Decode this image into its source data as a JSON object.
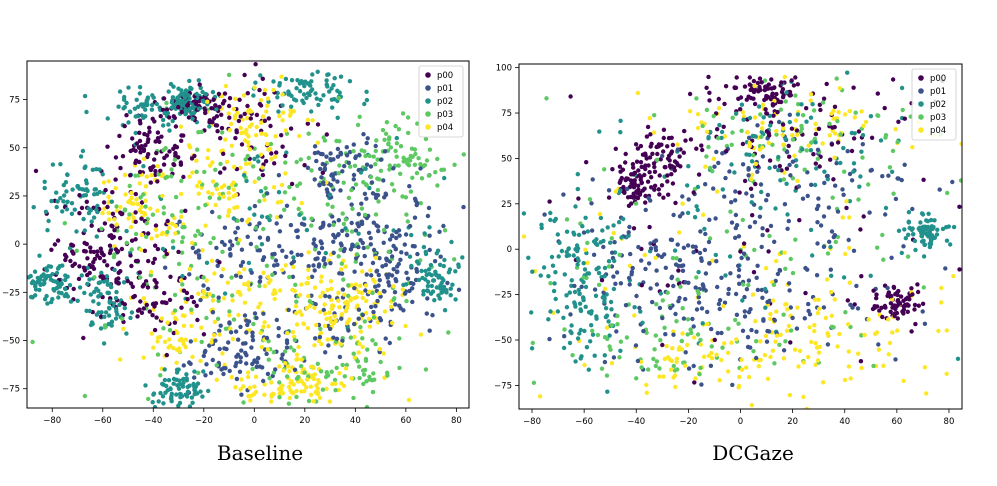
{
  "legend_colors": {
    "p00": "#440154",
    "p01": "#3b528b",
    "p02": "#21918c",
    "p03": "#5ec962",
    "p04": "#fde725"
  },
  "chart_data": [
    {
      "type": "scatter",
      "title": "Baseline",
      "xlabel": "",
      "ylabel": "",
      "xlim": [
        -90,
        85
      ],
      "ylim": [
        -85,
        95
      ],
      "xticks": [
        -80,
        -60,
        -40,
        -20,
        0,
        20,
        40,
        60,
        80
      ],
      "yticks": [
        -75,
        -50,
        -25,
        0,
        25,
        50,
        75
      ],
      "grid": false,
      "legend_position": "top-right",
      "series": [
        {
          "name": "p00",
          "clusters": [
            [
              -40,
              50,
              8,
              8
            ],
            [
              -55,
              10,
              10,
              20
            ],
            [
              -5,
              55,
              15,
              15
            ],
            [
              -40,
              -30,
              12,
              12
            ],
            [
              -65,
              -10,
              8,
              8
            ],
            [
              -20,
              70,
              8,
              5
            ]
          ]
        },
        {
          "name": "p01",
          "clusters": [
            [
              35,
              40,
              10,
              8
            ],
            [
              -5,
              -5,
              15,
              12
            ],
            [
              50,
              10,
              15,
              15
            ],
            [
              30,
              0,
              12,
              12
            ],
            [
              20,
              -40,
              20,
              10
            ],
            [
              55,
              -20,
              10,
              12
            ],
            [
              -5,
              -60,
              10,
              8
            ]
          ]
        },
        {
          "name": "p02",
          "clusters": [
            [
              -70,
              25,
              8,
              12
            ],
            [
              -80,
              -20,
              5,
              5
            ],
            [
              -60,
              -30,
              6,
              8
            ],
            [
              -25,
              75,
              5,
              5
            ],
            [
              20,
              80,
              10,
              5
            ],
            [
              -40,
              70,
              10,
              5
            ],
            [
              70,
              -15,
              5,
              10
            ],
            [
              -30,
              -75,
              5,
              5
            ],
            [
              5,
              20,
              40,
              30
            ]
          ]
        },
        {
          "name": "p03",
          "clusters": [
            [
              10,
              30,
              30,
              20
            ],
            [
              45,
              5,
              20,
              25
            ],
            [
              0,
              -40,
              35,
              20
            ],
            [
              -35,
              15,
              15,
              20
            ],
            [
              30,
              -65,
              15,
              8
            ],
            [
              60,
              45,
              10,
              10
            ]
          ]
        },
        {
          "name": "p04",
          "clusters": [
            [
              -15,
              30,
              15,
              15
            ],
            [
              -25,
              -45,
              15,
              15
            ],
            [
              25,
              -55,
              15,
              15
            ],
            [
              10,
              -25,
              20,
              10
            ],
            [
              -45,
              20,
              10,
              10
            ],
            [
              0,
              60,
              10,
              10
            ],
            [
              15,
              -75,
              10,
              5
            ],
            [
              40,
              -30,
              10,
              10
            ]
          ]
        }
      ]
    },
    {
      "type": "scatter",
      "title": "DCGaze",
      "xlabel": "",
      "ylabel": "",
      "xlim": [
        -85,
        85
      ],
      "ylim": [
        -88,
        102
      ],
      "xticks": [
        -80,
        -60,
        -40,
        -20,
        0,
        20,
        40,
        60,
        80
      ],
      "yticks": [
        -75,
        -50,
        -25,
        0,
        25,
        50,
        75,
        100
      ],
      "grid": false,
      "legend_position": "top-right",
      "series": [
        {
          "name": "p00",
          "clusters": [
            [
              -30,
              50,
              6,
              8
            ],
            [
              -40,
              35,
              5,
              5
            ],
            [
              10,
              85,
              8,
              5
            ],
            [
              20,
              70,
              20,
              15
            ],
            [
              5,
              10,
              40,
              40
            ],
            [
              60,
              -30,
              5,
              5
            ]
          ]
        },
        {
          "name": "p01",
          "clusters": [
            [
              0,
              0,
              40,
              35
            ],
            [
              -20,
              -30,
              20,
              20
            ],
            [
              30,
              -20,
              25,
              25
            ],
            [
              -40,
              -5,
              15,
              15
            ],
            [
              20,
              40,
              20,
              15
            ]
          ]
        },
        {
          "name": "p02",
          "clusters": [
            [
              0,
              0,
              45,
              40
            ],
            [
              -60,
              -35,
              8,
              15
            ],
            [
              -60,
              0,
              10,
              15
            ],
            [
              70,
              10,
              5,
              5
            ],
            [
              15,
              60,
              20,
              15
            ]
          ]
        },
        {
          "name": "p03",
          "clusters": [
            [
              0,
              5,
              45,
              40
            ],
            [
              20,
              60,
              25,
              15
            ],
            [
              -30,
              -50,
              20,
              15
            ]
          ]
        },
        {
          "name": "p04",
          "clusters": [
            [
              0,
              0,
              45,
              40
            ],
            [
              40,
              -45,
              20,
              15
            ],
            [
              -10,
              -60,
              20,
              10
            ],
            [
              20,
              70,
              20,
              10
            ]
          ]
        }
      ]
    }
  ],
  "captions": {
    "left": "Baseline",
    "right": "DCGaze"
  }
}
